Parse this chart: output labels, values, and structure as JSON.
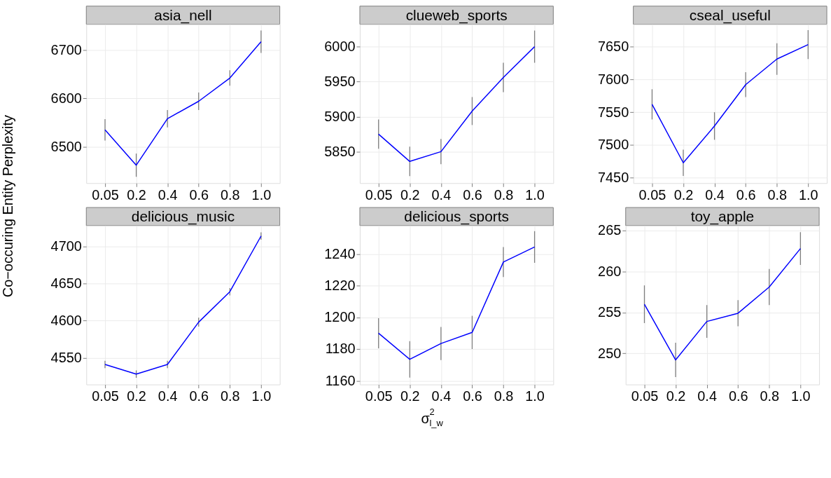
{
  "chart_data": [
    {
      "type": "line",
      "title": "asia_nell",
      "ylabel": "Co−occuring Entity Perplexity",
      "categories": [
        "0.05",
        "0.2",
        "0.4",
        "0.6",
        "0.8",
        "1.0"
      ],
      "series": [
        {
          "color": "#0000ff",
          "values": [
            6535,
            6462,
            6558,
            6594,
            6642,
            6717
          ],
          "errors": [
            22,
            24,
            18,
            18,
            16,
            23
          ]
        }
      ],
      "ylim": [
        6425,
        6753
      ],
      "yticks": [
        6500,
        6600,
        6700
      ],
      "grid": true
    },
    {
      "type": "line",
      "title": "clueweb_sports",
      "categories": [
        "0.05",
        "0.2",
        "0.4",
        "0.6",
        "0.8",
        "1.0"
      ],
      "series": [
        {
          "color": "#0000ff",
          "values": [
            5875,
            5836,
            5850,
            5908,
            5956,
            6000
          ],
          "errors": [
            21,
            21,
            18,
            20,
            21,
            23
          ]
        }
      ],
      "ylim": [
        5805,
        6032
      ],
      "yticks": [
        5850,
        5900,
        5950,
        6000
      ],
      "grid": true
    },
    {
      "type": "line",
      "title": "cseal_useful",
      "categories": [
        "0.05",
        "0.2",
        "0.4",
        "0.6",
        "0.8",
        "1.0"
      ],
      "series": [
        {
          "color": "#0000ff",
          "values": [
            7562,
            7473,
            7529,
            7592,
            7631,
            7653
          ],
          "errors": [
            23,
            20,
            21,
            19,
            24,
            22
          ]
        }
      ],
      "ylim": [
        7442,
        7684
      ],
      "yticks": [
        7450,
        7500,
        7550,
        7600,
        7650
      ],
      "grid": true
    },
    {
      "type": "line",
      "title": "delicious_music",
      "categories": [
        "0.05",
        "0.2",
        "0.4",
        "0.6",
        "0.8",
        "1.0"
      ],
      "series": [
        {
          "color": "#0000ff",
          "values": [
            4541,
            4528,
            4541,
            4598,
            4639,
            4714
          ],
          "errors": [
            5,
            5,
            5,
            6,
            5,
            5
          ]
        }
      ],
      "ylim": [
        4514,
        4728
      ],
      "yticks": [
        4550,
        4600,
        4650,
        4700
      ],
      "grid": true
    },
    {
      "type": "line",
      "title": "delicious_sports",
      "xlabel": "σ$_{l_w}$$^{2}$",
      "categories": [
        "0.05",
        "0.2",
        "0.4",
        "0.6",
        "0.8",
        "1.0"
      ],
      "series": [
        {
          "color": "#0000ff",
          "values": [
            1190,
            1173.5,
            1183.5,
            1190.5,
            1235,
            1244.5
          ],
          "errors": [
            9.5,
            11.5,
            10.5,
            10.5,
            9.5,
            10
          ]
        }
      ],
      "ylim": [
        1157.6,
        1258
      ],
      "yticks": [
        1160,
        1180,
        1200,
        1220,
        1240
      ],
      "grid": true
    },
    {
      "type": "line",
      "title": "toy_apple",
      "categories": [
        "0.05",
        "0.2",
        "0.4",
        "0.6",
        "0.8",
        "1.0"
      ],
      "series": [
        {
          "color": "#0000ff",
          "values": [
            256.0,
            249.2,
            253.9,
            254.9,
            258.1,
            262.8
          ],
          "errors": [
            2.3,
            2.1,
            2.0,
            1.6,
            2.2,
            2.0
          ]
        }
      ],
      "ylim": [
        246.2,
        265.6
      ],
      "yticks": [
        250,
        255,
        260,
        265
      ],
      "grid": true
    }
  ]
}
